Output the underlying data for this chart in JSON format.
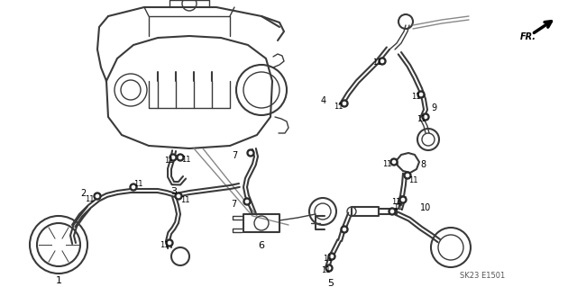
{
  "background_color": "#f0f0f0",
  "line_color": "#3a3a3a",
  "text_color": "#000000",
  "code": "SK23 E1501",
  "fig_width": 6.4,
  "fig_height": 3.19,
  "dpi": 100
}
